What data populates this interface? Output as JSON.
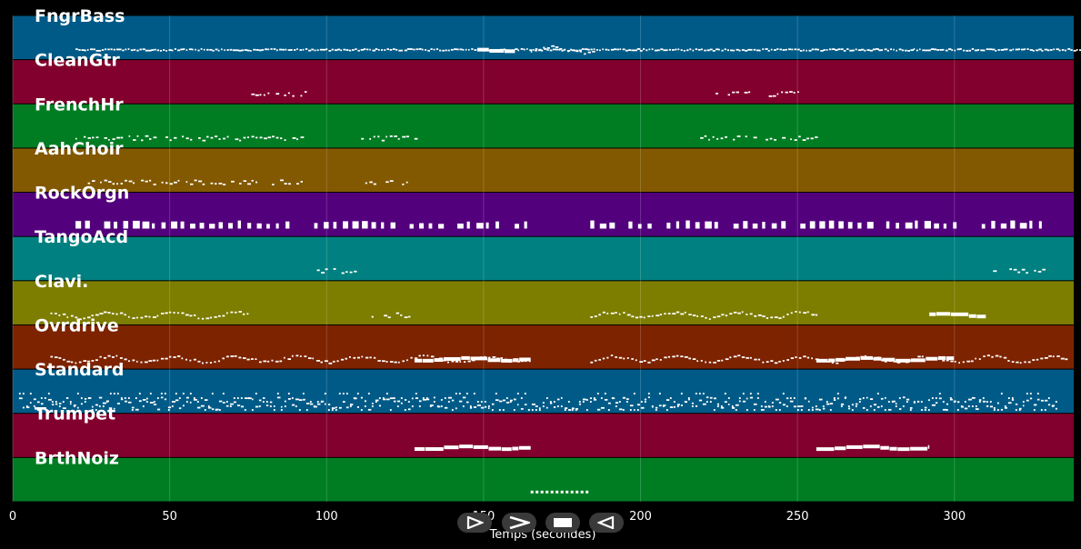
{
  "chart_data": {
    "type": "piano-roll",
    "xlabel": "Temps (secondes)",
    "xlim": [
      0,
      338
    ],
    "xticks": [
      0,
      50,
      100,
      150,
      200,
      250,
      300
    ],
    "tracks": [
      {
        "name": "FngrBass",
        "color": "#005a87",
        "segments": [
          [
            20,
            340,
            "dense"
          ],
          [
            148,
            160,
            "solid"
          ],
          [
            165,
            185,
            "wavy"
          ]
        ]
      },
      {
        "name": "CleanGtr",
        "color": "#82002d",
        "segments": [
          [
            76,
            93,
            "sparse"
          ],
          [
            220,
            252,
            "sparse"
          ]
        ]
      },
      {
        "name": "FrenchHr",
        "color": "#007d23",
        "segments": [
          [
            20,
            92,
            "sparse"
          ],
          [
            111,
            128,
            "sparse"
          ],
          [
            219,
            256,
            "sparse"
          ]
        ]
      },
      {
        "name": "AahChoir",
        "color": "#825800",
        "segments": [
          [
            20,
            92,
            "sparse"
          ],
          [
            111,
            128,
            "sparse"
          ]
        ]
      },
      {
        "name": "RockOrgn",
        "color": "#53007d",
        "segments": [
          [
            20,
            165,
            "blocks"
          ],
          [
            184,
            328,
            "blocks"
          ]
        ]
      },
      {
        "name": "TangoAcd",
        "color": "#008080",
        "segments": [
          [
            93,
            111,
            "sparse"
          ],
          [
            311,
            329,
            "sparse"
          ]
        ]
      },
      {
        "name": "Clavi.",
        "color": "#7d7d00",
        "segments": [
          [
            12,
            75,
            "wavy"
          ],
          [
            113,
            127,
            "sparse"
          ],
          [
            184,
            256,
            "wavy"
          ],
          [
            292,
            310,
            "solid"
          ]
        ]
      },
      {
        "name": "Ovrdrive",
        "color": "#7d2300",
        "segments": [
          [
            12,
            165,
            "wavy"
          ],
          [
            184,
            336,
            "wavy"
          ],
          [
            128,
            165,
            "solid"
          ],
          [
            256,
            300,
            "solid"
          ]
        ]
      },
      {
        "name": "Standard",
        "color": "#005a87",
        "segments": [
          [
            2,
            333,
            "drums"
          ]
        ]
      },
      {
        "name": "Trumpet",
        "color": "#82002d",
        "segments": [
          [
            128,
            165,
            "solid"
          ],
          [
            256,
            292,
            "solid"
          ]
        ]
      },
      {
        "name": "BrthNoiz",
        "color": "#007d23",
        "segments": [
          [
            165,
            183,
            "dots"
          ]
        ]
      }
    ]
  },
  "controls": [
    {
      "name": "play-button",
      "icon": "play-icon"
    },
    {
      "name": "forward-button",
      "icon": "chevron-right-icon"
    },
    {
      "name": "stop-button",
      "icon": "stop-icon"
    },
    {
      "name": "rewind-button",
      "icon": "play-reverse-icon"
    }
  ]
}
